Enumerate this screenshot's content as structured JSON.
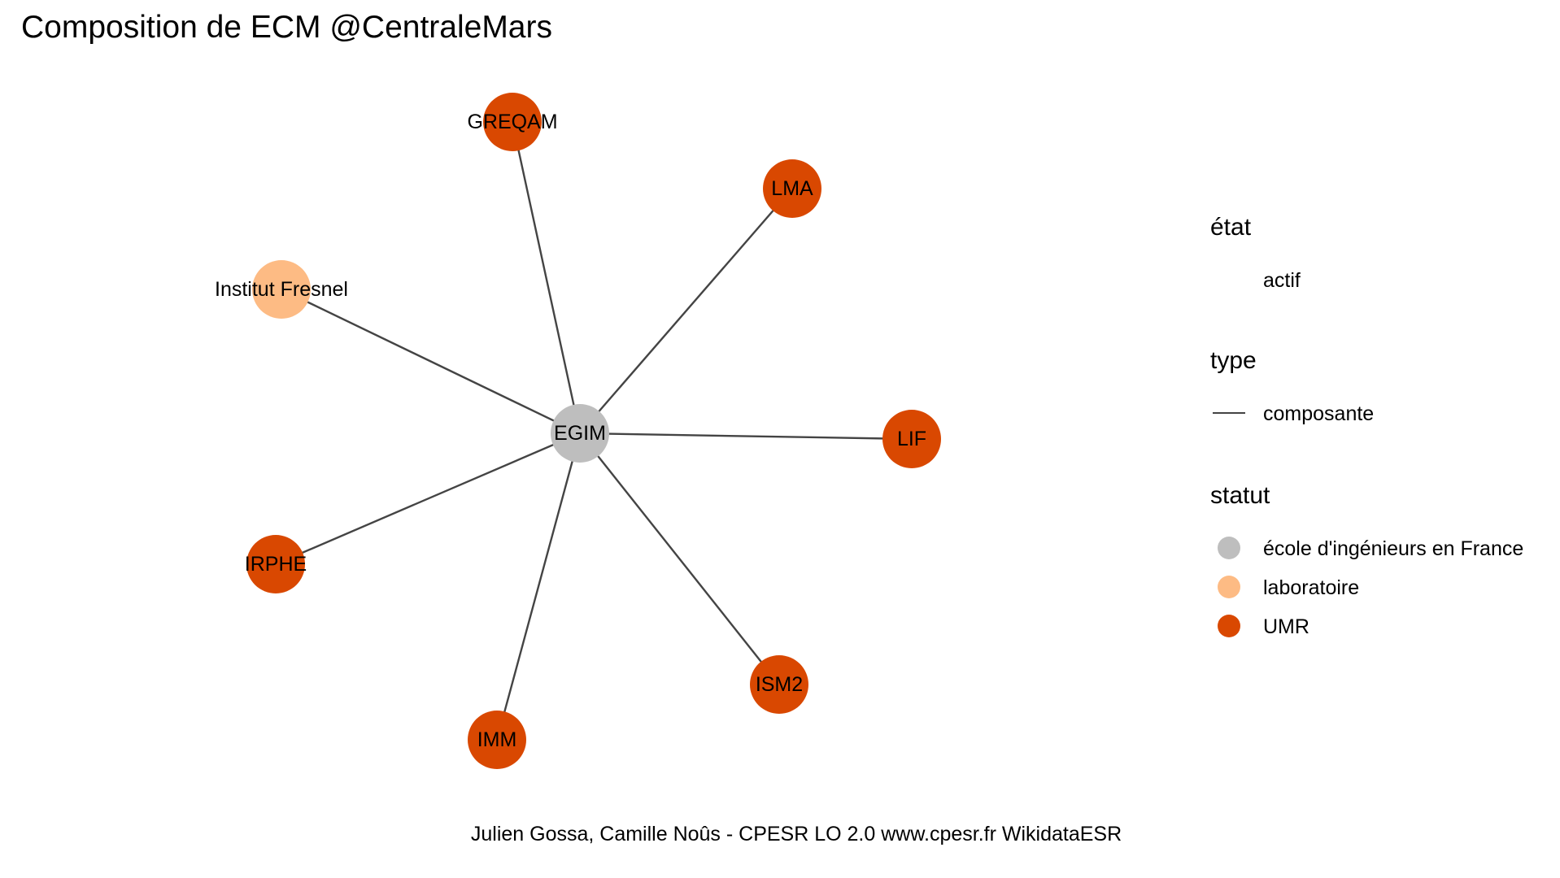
{
  "title": "Composition de ECM @CentraleMars",
  "caption": "Julien Gossa, Camille Noûs - CPESR LO 2.0 www.cpesr.fr WikidataESR",
  "colors": {
    "ecole": "#BEBEBE",
    "laboratoire": "#FDBB84",
    "umr": "#D94801",
    "edge": "#444444"
  },
  "graph": {
    "nodes": [
      {
        "id": "EGIM",
        "label": "EGIM",
        "statut": "ecole"
      },
      {
        "id": "GREQAM",
        "label": "GREQAM",
        "statut": "umr"
      },
      {
        "id": "LMA",
        "label": "LMA",
        "statut": "umr"
      },
      {
        "id": "Institut Fresnel",
        "label": "Institut Fresnel",
        "statut": "laboratoire"
      },
      {
        "id": "LIF",
        "label": "LIF",
        "statut": "umr"
      },
      {
        "id": "IRPHE",
        "label": "IRPHE",
        "statut": "umr"
      },
      {
        "id": "ISM2",
        "label": "ISM2",
        "statut": "umr"
      },
      {
        "id": "IMM",
        "label": "IMM",
        "statut": "umr"
      }
    ],
    "edges": [
      {
        "from": "EGIM",
        "to": "GREQAM",
        "type": "composante"
      },
      {
        "from": "EGIM",
        "to": "LMA",
        "type": "composante"
      },
      {
        "from": "EGIM",
        "to": "Institut Fresnel",
        "type": "composante"
      },
      {
        "from": "EGIM",
        "to": "LIF",
        "type": "composante"
      },
      {
        "from": "EGIM",
        "to": "IRPHE",
        "type": "composante"
      },
      {
        "from": "EGIM",
        "to": "ISM2",
        "type": "composante"
      },
      {
        "from": "EGIM",
        "to": "IMM",
        "type": "composante"
      }
    ]
  },
  "legend": {
    "etat": {
      "title": "état",
      "items": [
        {
          "label": "actif"
        }
      ]
    },
    "type": {
      "title": "type",
      "items": [
        {
          "label": "composante"
        }
      ]
    },
    "statut": {
      "title": "statut",
      "items": [
        {
          "label": "école d'ingénieurs en France",
          "statut": "ecole"
        },
        {
          "label": "laboratoire",
          "statut": "laboratoire"
        },
        {
          "label": "UMR",
          "statut": "umr"
        }
      ]
    }
  }
}
